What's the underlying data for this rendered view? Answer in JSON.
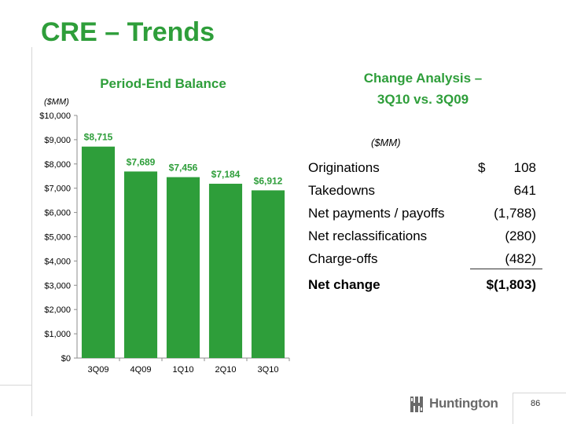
{
  "slide": {
    "title": "CRE – Trends",
    "page_number": "86",
    "logo_text": "Huntington"
  },
  "chart_data": {
    "type": "bar",
    "title": "Period-End Balance",
    "unit_note": "($MM)",
    "categories": [
      "3Q09",
      "4Q09",
      "1Q10",
      "2Q10",
      "3Q10"
    ],
    "values": [
      8715,
      7689,
      7456,
      7184,
      6912
    ],
    "value_labels": [
      "$8,715",
      "$7,689",
      "$7,456",
      "$7,184",
      "$6,912"
    ],
    "ylim": [
      0,
      10000
    ],
    "yticks": [
      0,
      1000,
      2000,
      3000,
      4000,
      5000,
      6000,
      7000,
      8000,
      9000,
      10000
    ],
    "ytick_labels": [
      "$0",
      "$1,000",
      "$2,000",
      "$3,000",
      "$4,000",
      "$5,000",
      "$6,000",
      "$7,000",
      "$8,000",
      "$9,000",
      "$10,000"
    ],
    "bar_color": "#2e9e3a",
    "grid": false
  },
  "change_analysis": {
    "title_line1": "Change Analysis –",
    "title_line2": "3Q10 vs. 3Q09",
    "unit_note": "($MM)",
    "rows": [
      {
        "label": "Originations",
        "currency": "$",
        "value": "108"
      },
      {
        "label": "Takedowns",
        "currency": "",
        "value": "641"
      },
      {
        "label": "Net payments / payoffs",
        "currency": "",
        "value": "(1,788)"
      },
      {
        "label": "Net reclassifications",
        "currency": "",
        "value": "(280)"
      },
      {
        "label": "Charge-offs",
        "currency": "",
        "value": "(482)"
      }
    ],
    "total": {
      "label": "Net change",
      "value": "$(1,803)"
    }
  },
  "colors": {
    "accent": "#2e9e3a",
    "logo_gray": "#6a6a6a"
  }
}
